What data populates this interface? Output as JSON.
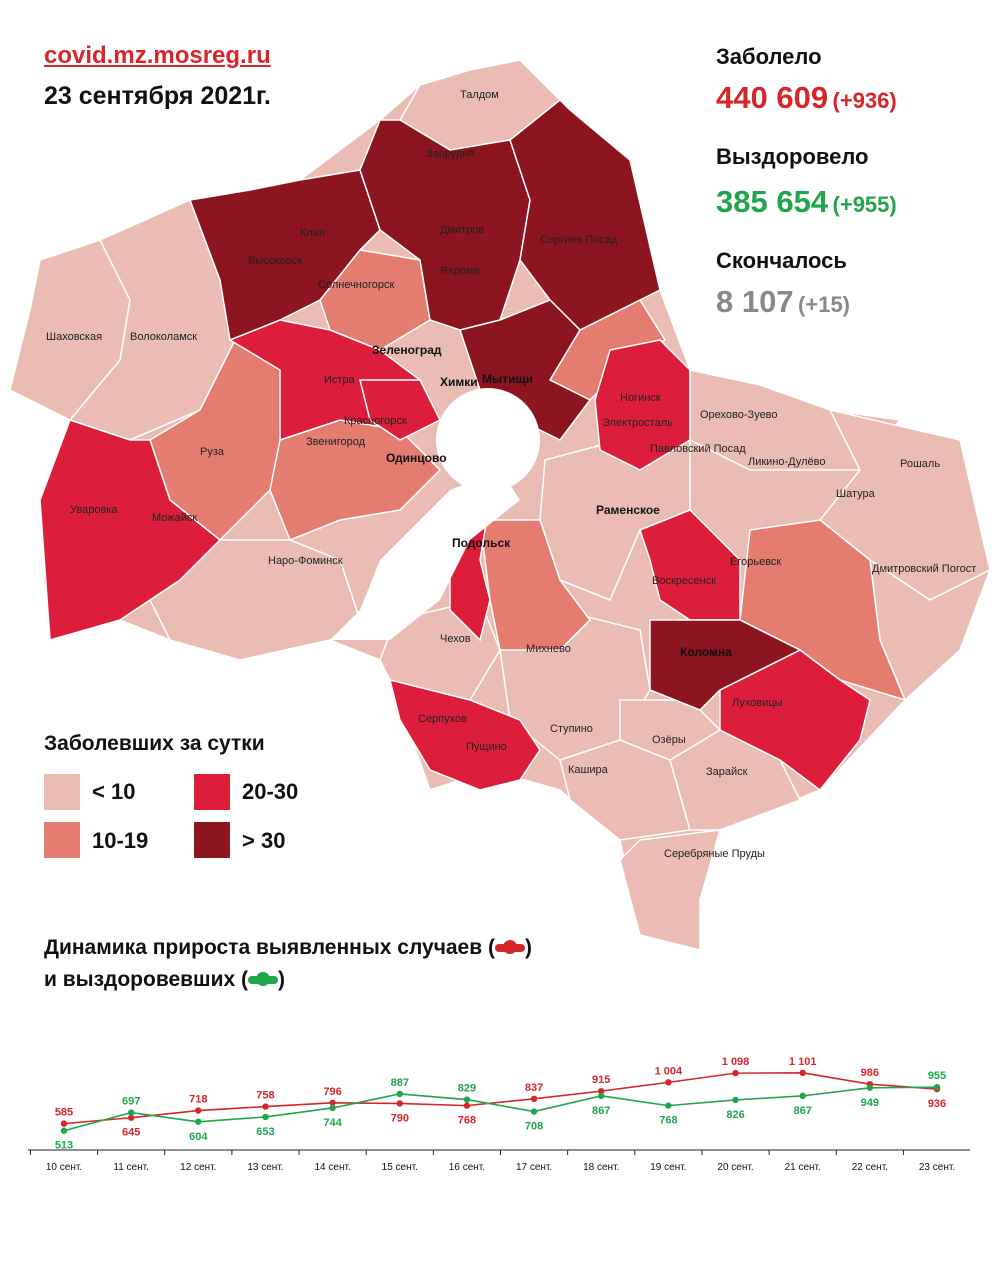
{
  "header": {
    "site": "covid.mz.mosreg.ru",
    "date": "23 сентября 2021г."
  },
  "stats": {
    "cases_label": "Заболело",
    "cases_value": "440 609",
    "cases_delta": "(+936)",
    "recovered_label": "Выздоровело",
    "recovered_value": "385 654",
    "recovered_delta": "(+955)",
    "deaths_label": "Скончалось",
    "deaths_value": "8 107",
    "deaths_delta": "(+15)"
  },
  "colors": {
    "cases": "#d7262a",
    "recovered": "#1fa64b",
    "deaths": "#888888",
    "lt10": "#ebbcb3",
    "c10_19": "#e47c6f",
    "c20_30": "#dc1e3a",
    "gt30": "#8c1520"
  },
  "legend": {
    "title": "Заболевших за сутки",
    "items": [
      {
        "label": "< 10",
        "color": "#ebbcb3"
      },
      {
        "label": "20-30",
        "color": "#dc1e3a"
      },
      {
        "label": "10-19",
        "color": "#e47c6f"
      },
      {
        "label": "> 30",
        "color": "#8c1520"
      }
    ]
  },
  "map": {
    "cities": [
      "Талдом",
      "Запрудня",
      "Клин",
      "Высоковск",
      "Дмитров",
      "Яхрома",
      "Сергиев Посад",
      "Солнечногорск",
      "Шаховская",
      "Волоколамск",
      "Зеленоград",
      "Истра",
      "Химки",
      "Мытищи",
      "Красногорск",
      "Ногинск",
      "Электросталь",
      "Орехово-Зуево",
      "Павловский Посад",
      "Ликино-Дулёво",
      "Рошаль",
      "Руза",
      "Звенигород",
      "Одинцово",
      "Шатура",
      "Уваровка",
      "Можайск",
      "Раменское",
      "Наро-Фоминск",
      "Подольск",
      "Егорьевск",
      "Воскресенск",
      "Дмитровский Погост",
      "Чехов",
      "Михнево",
      "Коломна",
      "Серпухов",
      "Луховицы",
      "Пущино",
      "Ступино",
      "Озёры",
      "Кашира",
      "Зарайск",
      "Серебряные Пруды"
    ]
  },
  "dynamics": {
    "title_line1": "Динамика прироста выявленных случаев (",
    "title_line1_end": ")",
    "title_line2": "и выздоровевших (",
    "title_line2_end": ")"
  },
  "chart_data": {
    "type": "line",
    "categories": [
      "10 сент.",
      "11 сент.",
      "12 сент.",
      "13 сент.",
      "14 сент.",
      "15 сент.",
      "16 сент.",
      "17 сент.",
      "18 сент.",
      "19 сент.",
      "20 сент.",
      "21 сент.",
      "22 сент.",
      "23 сент."
    ],
    "series": [
      {
        "color": "#d7262a",
        "values": [
          585,
          645,
          718,
          758,
          796,
          790,
          768,
          837,
          915,
          1004,
          1098,
          1101,
          986,
          936
        ],
        "labels": [
          "585",
          "645",
          "718",
          "758",
          "796",
          "790",
          "768",
          "837",
          "915",
          "1 004",
          "1 098",
          "1 101",
          "986",
          "936"
        ]
      },
      {
        "color": "#1fa64b",
        "values": [
          513,
          697,
          604,
          653,
          744,
          887,
          829,
          708,
          867,
          768,
          826,
          867,
          949,
          955
        ],
        "labels": [
          "513",
          "697",
          "604",
          "653",
          "744",
          "887",
          "829",
          "708",
          "867",
          "768",
          "826",
          "867",
          "949",
          "955"
        ]
      }
    ],
    "legend": "none",
    "grid": false
  }
}
